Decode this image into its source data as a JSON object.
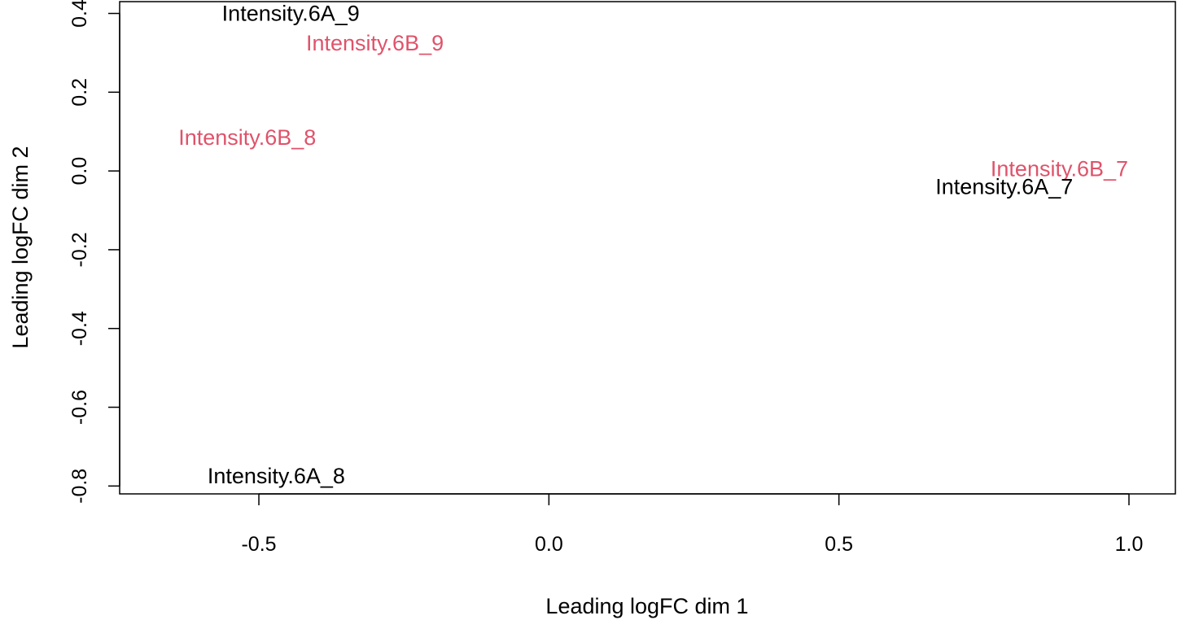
{
  "chart_data": {
    "type": "scatter",
    "xlabel": "Leading logFC dim 1",
    "ylabel": "Leading logFC dim 2",
    "xlim": [
      -0.74,
      1.08
    ],
    "ylim": [
      -0.82,
      0.43
    ],
    "x_ticks": [
      -0.5,
      0.0,
      0.5,
      1.0
    ],
    "x_tick_labels": [
      "-0.5",
      "0.0",
      "0.5",
      "1.0"
    ],
    "y_ticks": [
      -0.8,
      -0.6,
      -0.4,
      -0.2,
      0.0,
      0.2,
      0.4
    ],
    "y_tick_labels": [
      "-0.8",
      "-0.6",
      "-0.4",
      "-0.2",
      "0.0",
      "0.2",
      "0.4"
    ],
    "grid": false,
    "legend": "none",
    "colors": {
      "group_6A": "#000000",
      "group_6B": "#DF536B"
    },
    "points": [
      {
        "label": "Intensity.6A_9",
        "x": -0.445,
        "y": 0.4,
        "group": "group_6A"
      },
      {
        "label": "Intensity.6B_9",
        "x": -0.3,
        "y": 0.325,
        "group": "group_6B"
      },
      {
        "label": "Intensity.6B_8",
        "x": -0.52,
        "y": 0.085,
        "group": "group_6B"
      },
      {
        "label": "Intensity.6B_7",
        "x": 0.88,
        "y": 0.005,
        "group": "group_6B"
      },
      {
        "label": "Intensity.6A_7",
        "x": 0.785,
        "y": -0.04,
        "group": "group_6A"
      },
      {
        "label": "Intensity.6A_8",
        "x": -0.47,
        "y": -0.775,
        "group": "group_6A"
      }
    ]
  }
}
